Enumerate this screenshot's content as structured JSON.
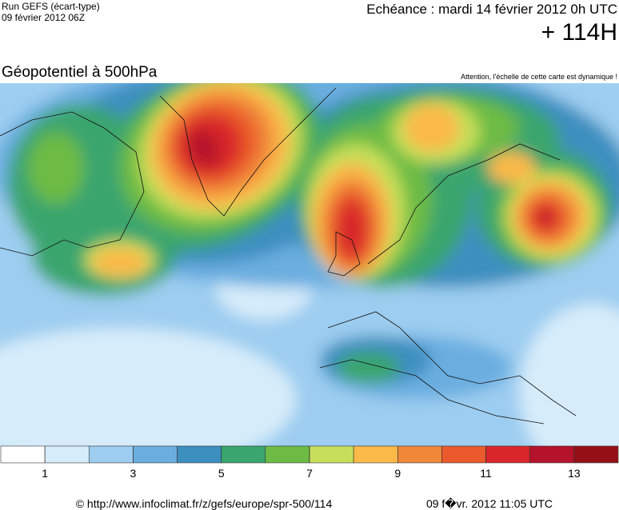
{
  "header": {
    "run": "Run GEFS (écart-type)",
    "run_date": "09 février 2012 06Z",
    "forecast": "Echéance : mardi 14 février 2012 0h UTC",
    "lead": "+ 114H"
  },
  "map": {
    "title": "Géopotentiel à 500hPa",
    "notice": "Attention, l'échelle de cette carte est dynamique !"
  },
  "legend": {
    "range": [
      0,
      14
    ],
    "ticks": [
      1,
      3,
      5,
      7,
      9,
      11,
      13
    ],
    "colors": [
      "#ffffff",
      "#d6ecfa",
      "#9dcdf0",
      "#6aaee0",
      "#3d8fbf",
      "#3aa56e",
      "#6dbb45",
      "#c5df5a",
      "#fbb94a",
      "#f0883a",
      "#ea5a2c",
      "#d8262a",
      "#b5122c",
      "#951016"
    ]
  },
  "footer": {
    "url": "© http://www.infoclimat.fr/z/gefs/europe/spr-500/114",
    "timestamp": "09 f�vr. 2012 11:05 UTC"
  }
}
